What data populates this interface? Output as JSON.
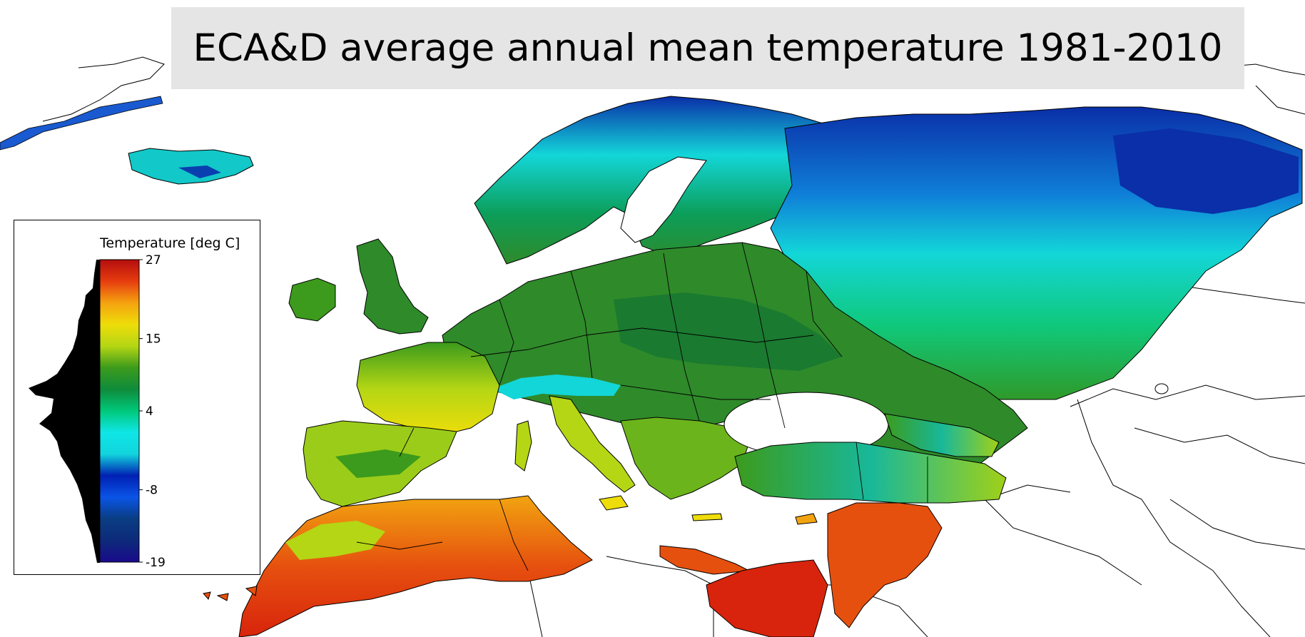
{
  "title": "ECA&D average annual mean temperature 1981-2010",
  "legend": {
    "title": "Temperature [deg C]",
    "ticks": [
      "27",
      "15",
      "4",
      "-8",
      "-19"
    ],
    "tick_values": [
      27,
      15,
      4,
      -8,
      -19
    ],
    "range": [
      -19,
      27
    ],
    "colormap": [
      "#1a0a8c",
      "#0d2a7a",
      "#0a3d82",
      "#0a55e6",
      "#0020b4",
      "#12d4dd",
      "#0fe6e6",
      "#00c87a",
      "#0f8c3c",
      "#3c9b1c",
      "#b4d614",
      "#eedd0a",
      "#f5a20f",
      "#e63c0f",
      "#b40d0d"
    ]
  },
  "map": {
    "colors": {
      "cold": "#0a2fa8",
      "cool": "#13d6d8",
      "mild": "#0c9e5a",
      "temperate": "#2f8a2a",
      "warm": "#c8d81a",
      "hot": "#f2a410",
      "very_hot": "#d8240c",
      "border": "#000000",
      "land_outline": "#000000"
    }
  }
}
